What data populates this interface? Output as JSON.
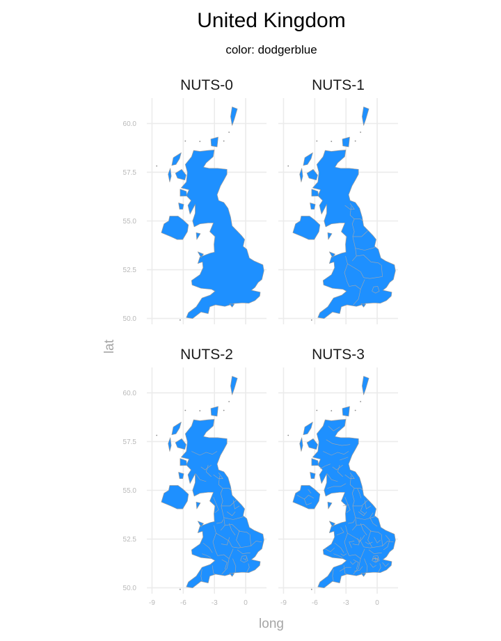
{
  "figure": {
    "title": "United Kingdom",
    "subtitle": "color: dodgerblue"
  },
  "chart_data": {
    "type": "map",
    "fill_color": "#1e90ff",
    "border_color": "#9a9a9a",
    "grid": true,
    "xlabel": "long",
    "ylabel": "lat",
    "xlim": [
      -9.5,
      2.0
    ],
    "ylim": [
      49.7,
      61.3
    ],
    "x_ticks": [
      {
        "value": -9,
        "label": "-9"
      },
      {
        "value": -6,
        "label": "-6"
      },
      {
        "value": -3,
        "label": "-3"
      },
      {
        "value": 0,
        "label": "0"
      }
    ],
    "y_ticks": [
      {
        "value": 50,
        "label": "50.0"
      },
      {
        "value": 52.5,
        "label": "52.5"
      },
      {
        "value": 55,
        "label": "55.0"
      },
      {
        "value": 57.5,
        "label": "57.5"
      },
      {
        "value": 60,
        "label": "60.0"
      }
    ],
    "facets": [
      {
        "label": "NUTS-0",
        "level": 0
      },
      {
        "label": "NUTS-1",
        "level": 1
      },
      {
        "label": "NUTS-2",
        "level": 2
      },
      {
        "label": "NUTS-3",
        "level": 3
      }
    ]
  }
}
